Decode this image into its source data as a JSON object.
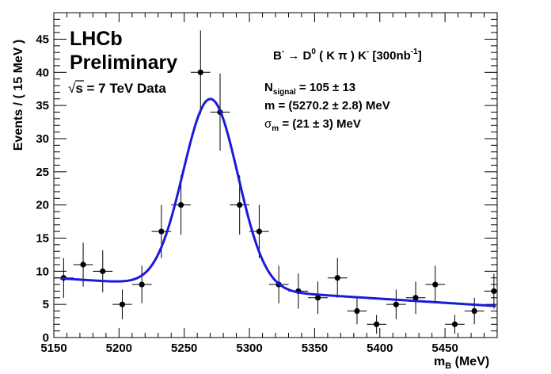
{
  "chart_data": {
    "type": "scatter",
    "xlabel": "m",
    "xlabel_sub": "B",
    "xlabel_unit": " (MeV)",
    "ylabel": "Events / ( 15 MeV )",
    "xlim": [
      5150,
      5490
    ],
    "ylim": [
      0,
      49
    ],
    "x_ticks": [
      5150,
      5200,
      5250,
      5300,
      5350,
      5400,
      5450
    ],
    "y_ticks": [
      0,
      5,
      10,
      15,
      20,
      25,
      30,
      35,
      40,
      45
    ],
    "bin_width": 15,
    "series": [
      {
        "type": "points-with-errors",
        "points": [
          {
            "x": 5157.5,
            "y": 9
          },
          {
            "x": 5172.5,
            "y": 11
          },
          {
            "x": 5187.5,
            "y": 10
          },
          {
            "x": 5202.5,
            "y": 5
          },
          {
            "x": 5217.5,
            "y": 8
          },
          {
            "x": 5232.5,
            "y": 16
          },
          {
            "x": 5247.5,
            "y": 20
          },
          {
            "x": 5262.5,
            "y": 40
          },
          {
            "x": 5277.5,
            "y": 34
          },
          {
            "x": 5292.5,
            "y": 20
          },
          {
            "x": 5307.5,
            "y": 16
          },
          {
            "x": 5322.5,
            "y": 8
          },
          {
            "x": 5337.5,
            "y": 7
          },
          {
            "x": 5352.5,
            "y": 6
          },
          {
            "x": 5367.5,
            "y": 9
          },
          {
            "x": 5382.5,
            "y": 4
          },
          {
            "x": 5397.5,
            "y": 2
          },
          {
            "x": 5412.5,
            "y": 5
          },
          {
            "x": 5427.5,
            "y": 6
          },
          {
            "x": 5442.5,
            "y": 8
          },
          {
            "x": 5457.5,
            "y": 2
          },
          {
            "x": 5472.5,
            "y": 4
          },
          {
            "x": 5487.5,
            "y": 7
          }
        ]
      },
      {
        "type": "fit-curve",
        "color": "#1a1adb",
        "background": {
          "b0": 8.9,
          "b1": -0.0125,
          "x0": 5157
        },
        "gaussian": {
          "amp": 28.5,
          "mean": 5270.2,
          "sigma": 21
        }
      }
    ]
  },
  "annotations": {
    "experiment": "LHCb",
    "status": "Preliminary",
    "sqrt": "√",
    "energy": "s = 7 TeV Data",
    "decay_b": "B",
    "decay_b_sup": "-",
    "decay_arrow": " → ",
    "decay_d": "D",
    "decay_d_sup": "0",
    "decay_kpi": " ( K π ) K",
    "decay_k_sup": "-",
    "decay_lumi": " [300nb",
    "decay_lumi_sup": "-1",
    "decay_close": "]",
    "nsig_n": "N",
    "nsig_sub": "signal",
    "nsig_val": " = 105 ± 13",
    "mass": "m = (5270.2 ± 2.8) MeV",
    "sigma_s": "σ",
    "sigma_sub": "m",
    "sigma_val": " = (21 ± 3) MeV"
  }
}
